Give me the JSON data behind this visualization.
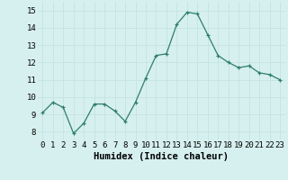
{
  "x": [
    0,
    1,
    2,
    3,
    4,
    5,
    6,
    7,
    8,
    9,
    10,
    11,
    12,
    13,
    14,
    15,
    16,
    17,
    18,
    19,
    20,
    21,
    22,
    23
  ],
  "y": [
    9.1,
    9.7,
    9.4,
    7.9,
    8.5,
    9.6,
    9.6,
    9.2,
    8.6,
    9.7,
    11.1,
    12.4,
    12.5,
    14.2,
    14.9,
    14.8,
    13.6,
    12.4,
    12.0,
    11.7,
    11.8,
    11.4,
    11.3,
    11.0
  ],
  "xlim": [
    -0.5,
    23.5
  ],
  "ylim": [
    7.5,
    15.5
  ],
  "yticks": [
    8,
    9,
    10,
    11,
    12,
    13,
    14,
    15
  ],
  "xticks": [
    0,
    1,
    2,
    3,
    4,
    5,
    6,
    7,
    8,
    9,
    10,
    11,
    12,
    13,
    14,
    15,
    16,
    17,
    18,
    19,
    20,
    21,
    22,
    23
  ],
  "xlabel": "Humidex (Indice chaleur)",
  "line_color": "#2e7d6e",
  "marker": "+",
  "bg_color": "#d6f0ef",
  "grid_color": "#c4e4e0",
  "tick_label_fontsize": 6.5,
  "xlabel_fontsize": 7.5
}
